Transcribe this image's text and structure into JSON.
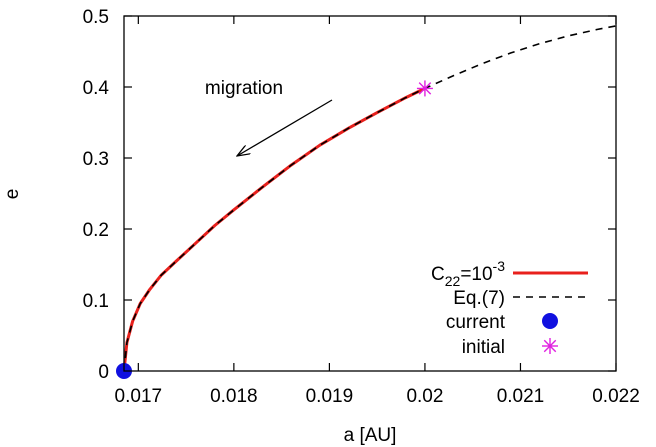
{
  "chart_data": {
    "type": "line",
    "xlabel": "a [AU]",
    "ylabel": "e",
    "xlim": [
      0.01685,
      0.022
    ],
    "ylim": [
      0,
      0.5
    ],
    "xticks": [
      {
        "v": 0.017,
        "label": "0.017"
      },
      {
        "v": 0.018,
        "label": "0.018"
      },
      {
        "v": 0.019,
        "label": "0.019"
      },
      {
        "v": 0.02,
        "label": "0.02"
      },
      {
        "v": 0.021,
        "label": "0.021"
      },
      {
        "v": 0.022,
        "label": "0.022"
      }
    ],
    "yticks": [
      {
        "v": 0,
        "label": "0"
      },
      {
        "v": 0.1,
        "label": "0.1"
      },
      {
        "v": 0.2,
        "label": "0.2"
      },
      {
        "v": 0.3,
        "label": "0.3"
      },
      {
        "v": 0.4,
        "label": "0.4"
      },
      {
        "v": 0.5,
        "label": "0.5"
      }
    ],
    "grid": false,
    "legend_position": "bottom-right",
    "series": [
      {
        "name_base": "C",
        "name_sub": "22",
        "name_mid": "=10",
        "name_sup": "-3",
        "style": "solid",
        "color": "#e8201c",
        "x": [
          0.01685,
          0.01688,
          0.01694,
          0.01702,
          0.01712,
          0.01724,
          0.0174,
          0.0176,
          0.0178,
          0.018,
          0.0183,
          0.0186,
          0.0189,
          0.0192,
          0.0195,
          0.0198,
          0.02
        ],
        "y": [
          0,
          0.04,
          0.07,
          0.095,
          0.115,
          0.135,
          0.155,
          0.18,
          0.205,
          0.227,
          0.259,
          0.29,
          0.318,
          0.342,
          0.364,
          0.385,
          0.398
        ]
      },
      {
        "name": "Eq.(7)",
        "style": "dashed",
        "color": "#000000",
        "x": [
          0.01685,
          0.01688,
          0.01694,
          0.01702,
          0.01712,
          0.01724,
          0.0174,
          0.0176,
          0.0178,
          0.018,
          0.0183,
          0.0186,
          0.0189,
          0.0192,
          0.0195,
          0.0198,
          0.02,
          0.0203,
          0.0206,
          0.0209,
          0.0212,
          0.0215,
          0.0218,
          0.022
        ],
        "y": [
          0,
          0.04,
          0.07,
          0.095,
          0.115,
          0.135,
          0.155,
          0.18,
          0.205,
          0.227,
          0.259,
          0.29,
          0.318,
          0.342,
          0.364,
          0.385,
          0.398,
          0.416,
          0.433,
          0.448,
          0.461,
          0.472,
          0.481,
          0.486
        ]
      },
      {
        "name": "current",
        "style": "marker-circle",
        "color": "#1010e0",
        "x": [
          0.01685
        ],
        "y": [
          0
        ]
      },
      {
        "name": "initial",
        "style": "marker-asterisk",
        "color": "#e020e0",
        "x": [
          0.02
        ],
        "y": [
          0.398
        ]
      }
    ],
    "annotations": [
      {
        "text": "migration",
        "arrow_from": [
          0.0198,
          0.39
        ],
        "arrow_to": [
          0.018,
          0.303
        ]
      }
    ]
  }
}
